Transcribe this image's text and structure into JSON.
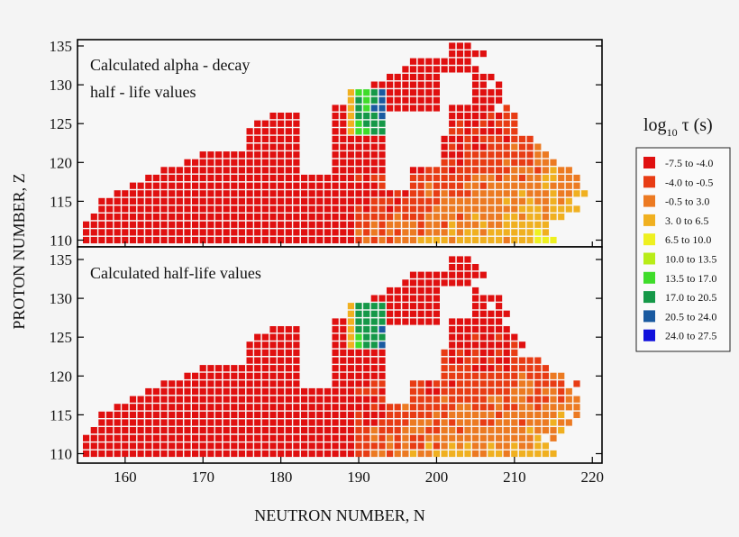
{
  "figure": {
    "panel_top_text_line1": "Calculated alpha - decay",
    "panel_top_text_line2": "half - life values",
    "panel_bottom_text": "Calculated half-life values"
  },
  "chart_data": {
    "type": "heatmap",
    "x_label": "NEUTRON NUMBER, N",
    "y_label": "PROTON NUMBER, Z",
    "x_range": [
      154,
      221
    ],
    "y_range": [
      109,
      136
    ],
    "x_ticks": [
      160,
      170,
      180,
      190,
      200,
      210,
      220
    ],
    "y_ticks": [
      110,
      115,
      120,
      125,
      130,
      135
    ],
    "legend_title_main": "log",
    "legend_title_sub": "10",
    "legend_title_rest": " τ (s)",
    "legend": [
      {
        "label": "-7.5  to  -4.0",
        "color": "#e01010"
      },
      {
        "label": "-4.0  to  -0.5",
        "color": "#e83c14"
      },
      {
        "label": "-0.5  to  3.0",
        "color": "#ec7a22"
      },
      {
        "label": "3. 0  to  6.5",
        "color": "#f0b020"
      },
      {
        "label": "6.5  to  10.0",
        "color": "#eef020"
      },
      {
        "label": "10.0  to  13.5",
        "color": "#b8ec18"
      },
      {
        "label": "13.5  to  17.0",
        "color": "#3fdc2a"
      },
      {
        "label": "17.0  to  20.5",
        "color": "#159848"
      },
      {
        "label": "20.5  to  24.0",
        "color": "#1a5aa0"
      },
      {
        "label": "24.0  to  27.5",
        "color": "#1010dc"
      }
    ],
    "panels": [
      {
        "name": "alpha-decay",
        "title": "Calculated alpha - decay half - life values"
      },
      {
        "name": "half-life",
        "title": "Calculated half-life values"
      }
    ],
    "z_rows": [
      {
        "z": 110,
        "n_min": 155,
        "n_max": 215
      },
      {
        "z": 111,
        "n_min": 155,
        "n_max": 214
      },
      {
        "z": 112,
        "n_min": 155,
        "n_max": 215
      },
      {
        "z": 113,
        "n_min": 156,
        "n_max": 216
      },
      {
        "z": 114,
        "n_min": 157,
        "n_max": 218
      },
      {
        "z": 115,
        "n_min": 157,
        "n_max": 218
      },
      {
        "z": 116,
        "n_min": 159,
        "n_max": 219
      },
      {
        "z": 117,
        "n_min": 161,
        "n_max": 219
      },
      {
        "z": 118,
        "n_min": 163,
        "n_max": 219
      },
      {
        "z": 119,
        "n_min": 165,
        "n_max": 218
      },
      {
        "z": 120,
        "n_min": 168,
        "n_max": 216
      },
      {
        "z": 121,
        "n_min": 170,
        "n_max": 214
      },
      {
        "z": 122,
        "n_min": 176,
        "n_max": 213
      },
      {
        "z": 123,
        "n_min": 176,
        "n_max": 212
      },
      {
        "z": 124,
        "n_min": 176,
        "n_max": 211
      },
      {
        "z": 125,
        "n_min": 177,
        "n_max": 210
      },
      {
        "z": 126,
        "n_min": 179,
        "n_max": 210
      },
      {
        "z": 127,
        "n_min": 187,
        "n_max": 209
      },
      {
        "z": 128,
        "n_min": 189,
        "n_max": 209
      },
      {
        "z": 129,
        "n_min": 189,
        "n_max": 208
      },
      {
        "z": 130,
        "n_min": 192,
        "n_max": 208
      },
      {
        "z": 131,
        "n_min": 194,
        "n_max": 207
      },
      {
        "z": 132,
        "n_min": 196,
        "n_max": 206
      },
      {
        "z": 133,
        "n_min": 197,
        "n_max": 206
      },
      {
        "z": 134,
        "n_min": 202,
        "n_max": 206
      },
      {
        "z": 135,
        "n_min": 202,
        "n_max": 204
      }
    ]
  }
}
